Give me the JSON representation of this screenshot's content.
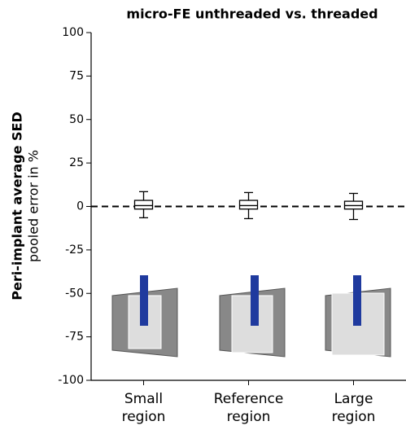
{
  "chart_data": {
    "type": "box",
    "title": "micro-FE unthreaded vs. threaded",
    "ylabel": "Peri-implant average SED",
    "ylabel_sub": "pooled error in %",
    "categories": [
      "Small region",
      "Reference region",
      "Large region"
    ],
    "boxes": [
      {
        "whisker_low": -6.5,
        "q1": -1.5,
        "median": 0.5,
        "q3": 3.5,
        "whisker_high": 8.5
      },
      {
        "whisker_low": -7,
        "q1": -1.5,
        "median": 0.5,
        "q3": 3.5,
        "whisker_high": 8
      },
      {
        "whisker_low": -7.5,
        "q1": -1.5,
        "median": 0.5,
        "q3": 3,
        "whisker_high": 7.5
      }
    ],
    "color": "#000000",
    "reference_line": 0,
    "ylim": [
      -100,
      100
    ],
    "yticks": [
      -100,
      -75,
      -50,
      -25,
      0,
      25,
      50,
      75,
      100
    ]
  }
}
